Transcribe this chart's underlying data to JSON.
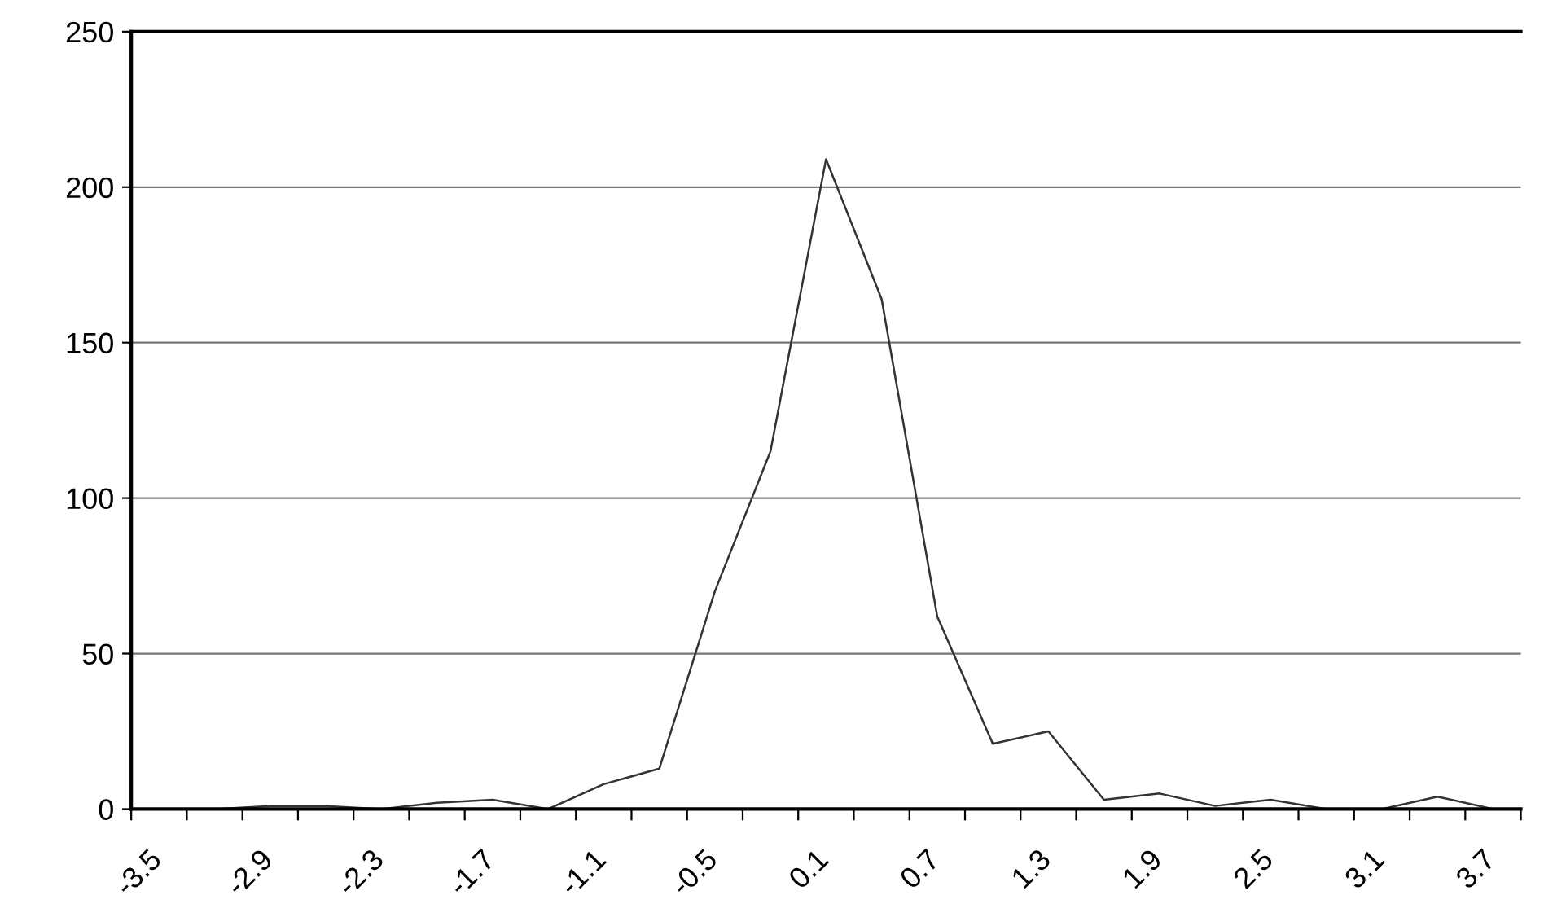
{
  "chart_data": {
    "type": "line",
    "categories": [
      "-3.5",
      null,
      "-2.9",
      null,
      "-2.3",
      null,
      "-1.7",
      null,
      "-1.1",
      null,
      "-0.5",
      null,
      "0.1",
      null,
      "0.7",
      null,
      "1.3",
      null,
      "1.9",
      null,
      "2.5",
      null,
      "3.1",
      null,
      "3.7"
    ],
    "series": [
      {
        "color": "#333333",
        "values": [
          0,
          0,
          1,
          1,
          0,
          2,
          3,
          0,
          8,
          13,
          70,
          115,
          209,
          164,
          62,
          21,
          25,
          3,
          5,
          1,
          3,
          0,
          0,
          4,
          0
        ]
      }
    ],
    "ylim": [
      0,
      250
    ],
    "yticks": [
      0,
      50,
      100,
      150,
      200,
      250
    ],
    "grid": "y",
    "marker": "none",
    "line_style": "solid"
  }
}
